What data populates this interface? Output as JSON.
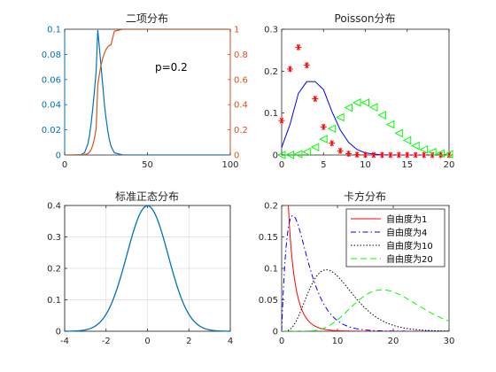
{
  "chart_data": [
    {
      "id": "binomial",
      "type": "line",
      "title": "二项分布",
      "annotation": "p=0.2",
      "grid": false,
      "xlim": [
        0,
        100
      ],
      "xticks": [
        0,
        50,
        100
      ],
      "ylim_left": [
        0,
        0.1
      ],
      "yticks_left": [
        0,
        0.02,
        0.04,
        0.06,
        0.08,
        0.1
      ],
      "ylim_right": [
        0,
        1
      ],
      "yticks_right": [
        0,
        0.2,
        0.4,
        0.6,
        0.8,
        1
      ],
      "colors": {
        "left": "#0072BD",
        "right": "#D95319"
      },
      "series": [
        {
          "axis": "left",
          "color": "#0072BD",
          "x": [
            0,
            5,
            10,
            12,
            14,
            15,
            16,
            17,
            18,
            19,
            20,
            21,
            22,
            23,
            24,
            25,
            26,
            27,
            28,
            30,
            35,
            40,
            50,
            100
          ],
          "y": [
            0,
            0,
            0.0003,
            0.0018,
            0.0087,
            0.0156,
            0.0254,
            0.0375,
            0.0511,
            0.0663,
            0.0993,
            0.0849,
            0.0701,
            0.0555,
            0.0404,
            0.029,
            0.0196,
            0.0121,
            0.0069,
            0.0018,
            5e-05,
            0,
            0,
            0
          ]
        },
        {
          "axis": "right",
          "color": "#D95319",
          "x": [
            0,
            5,
            10,
            12,
            14,
            15,
            16,
            17,
            18,
            19,
            20,
            21,
            22,
            23,
            24,
            25,
            26,
            27,
            28,
            30,
            35,
            40,
            50,
            100
          ],
          "y": [
            0,
            0,
            0.0006,
            0.0025,
            0.0115,
            0.0225,
            0.043,
            0.079,
            0.132,
            0.207,
            0.5595,
            0.6444,
            0.7145,
            0.77,
            0.8104,
            0.8394,
            0.859,
            0.8711,
            0.878,
            0.9839,
            0.9995,
            1,
            1,
            1
          ]
        }
      ]
    },
    {
      "id": "poisson",
      "type": "line",
      "title": "Poisson分布",
      "grid": false,
      "xlim": [
        0,
        20
      ],
      "xticks": [
        0,
        5,
        10,
        15,
        20
      ],
      "ylim": [
        0,
        0.3
      ],
      "yticks": [
        0,
        0.1,
        0.2,
        0.3
      ],
      "series": [
        {
          "style": "line",
          "color": "#0000FF",
          "x": [
            0,
            1,
            2,
            3,
            4,
            5,
            6,
            7,
            8,
            9,
            10,
            11,
            12,
            13,
            14,
            15,
            16,
            17,
            18,
            19,
            20
          ],
          "y": [
            0.018,
            0.073,
            0.147,
            0.175,
            0.175,
            0.156,
            0.104,
            0.06,
            0.03,
            0.013,
            0.005,
            0.002,
            0.0006,
            0.0002,
            5e-05,
            0,
            0,
            0,
            0,
            0,
            0
          ]
        },
        {
          "style": "marker-star",
          "color": "#FF0000",
          "x": [
            0,
            1,
            2,
            3,
            4,
            5,
            6,
            7,
            8,
            9,
            10,
            11,
            12,
            13,
            14,
            15,
            16,
            17,
            18,
            19,
            20
          ],
          "y": [
            0.082,
            0.205,
            0.257,
            0.214,
            0.134,
            0.067,
            0.028,
            0.01,
            0.003,
            0.0008,
            0.0002,
            0,
            0,
            0,
            0,
            0,
            0,
            0,
            0,
            0,
            0
          ]
        },
        {
          "style": "marker-triangle-left",
          "color": "#00FF00",
          "x": [
            0,
            1,
            2,
            3,
            4,
            5,
            6,
            7,
            8,
            9,
            10,
            11,
            12,
            13,
            14,
            15,
            16,
            17,
            18,
            19,
            20
          ],
          "y": [
            0,
            0.0005,
            0.0023,
            0.0076,
            0.0189,
            0.0378,
            0.063,
            0.09,
            0.113,
            0.125,
            0.125,
            0.114,
            0.095,
            0.073,
            0.052,
            0.035,
            0.022,
            0.013,
            0.007,
            0.0037,
            0.0019
          ]
        }
      ]
    },
    {
      "id": "normal",
      "type": "line",
      "title": "标准正态分布",
      "grid": true,
      "xlim": [
        -4,
        4
      ],
      "xticks": [
        -4,
        -2,
        0,
        2,
        4
      ],
      "ylim": [
        0,
        0.4
      ],
      "yticks": [
        0,
        0.1,
        0.2,
        0.3,
        0.4
      ],
      "series": [
        {
          "color": "#0072BD",
          "function": "standard-normal-pdf"
        }
      ]
    },
    {
      "id": "chisquare",
      "type": "line",
      "title": "卡方分布",
      "grid": false,
      "legend_position": "top-right",
      "xlim": [
        0,
        30
      ],
      "xticks": [
        0,
        10,
        20,
        30
      ],
      "ylim": [
        0,
        0.2
      ],
      "yticks": [
        0,
        0.05,
        0.1,
        0.15,
        0.2
      ],
      "series": [
        {
          "name": "自由度为1",
          "color": "#FF0000",
          "dash": "",
          "df": 1
        },
        {
          "name": "自由度为4",
          "color": "#0000FF",
          "dash": "6,3,1.5,3",
          "df": 4
        },
        {
          "name": "自由度为10",
          "color": "#000000",
          "dash": "1.5,2",
          "df": 10
        },
        {
          "name": "自由度为20",
          "color": "#00FF00",
          "dash": "7,4",
          "df": 20
        }
      ]
    }
  ]
}
